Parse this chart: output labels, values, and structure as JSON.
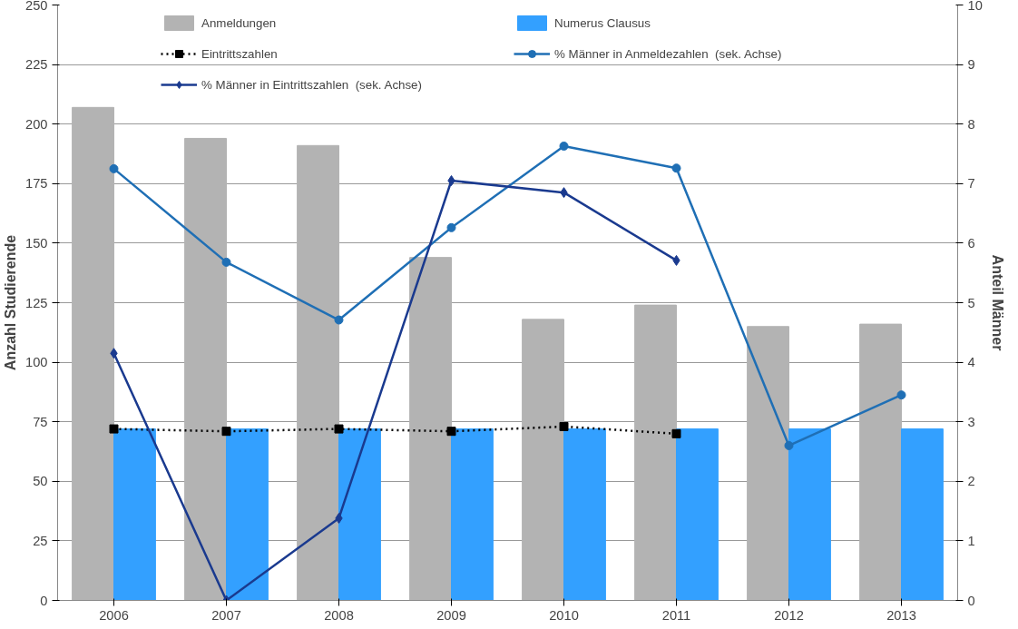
{
  "chart_data": {
    "type": "bar",
    "ylabel": "Anzahl Studierende",
    "y2label": "Anteil Männer",
    "categories": [
      "2006",
      "2007",
      "2008",
      "2009",
      "2010",
      "2011",
      "2012",
      "2013"
    ],
    "ylim": [
      0,
      250
    ],
    "yticks": [
      0,
      25,
      50,
      75,
      100,
      125,
      150,
      175,
      200,
      225,
      250
    ],
    "y2lim": [
      0,
      10
    ],
    "y2ticks": [
      0,
      1,
      2,
      3,
      4,
      5,
      6,
      7,
      8,
      9,
      10
    ],
    "grid": "y",
    "legend": "top",
    "series": [
      {
        "name": "Anmeldungen",
        "color": "#b3b3b3",
        "values": [
          207,
          194,
          191,
          144,
          118,
          124,
          115,
          116
        ]
      },
      {
        "name": "Numerus Clausus",
        "color": "#33a0ff",
        "values": [
          72,
          72,
          72,
          72,
          72,
          72,
          72,
          72
        ]
      },
      {
        "name": "Eintrittszahlen",
        "type": "line",
        "color": "#000000",
        "marker": "square",
        "line_style": "dotted",
        "values": [
          72,
          71,
          72,
          71,
          73,
          70,
          null,
          null
        ]
      },
      {
        "name": "% Männer in Anmeldezahlen  (sek. Achse)",
        "type": "line",
        "axis": "y2",
        "color": "#1f6fb5",
        "marker": "circle",
        "line_style": "solid",
        "values": [
          7.25,
          5.68,
          4.71,
          6.26,
          7.63,
          7.26,
          2.6,
          3.45
        ]
      },
      {
        "name": "% Männer in Eintrittszahlen  (sek. Achse)",
        "type": "line",
        "axis": "y2",
        "color": "#1a3a8f",
        "marker": "diamond",
        "line_style": "solid",
        "values": [
          4.15,
          0,
          1.38,
          7.05,
          6.85,
          5.71,
          null,
          null
        ]
      }
    ]
  }
}
